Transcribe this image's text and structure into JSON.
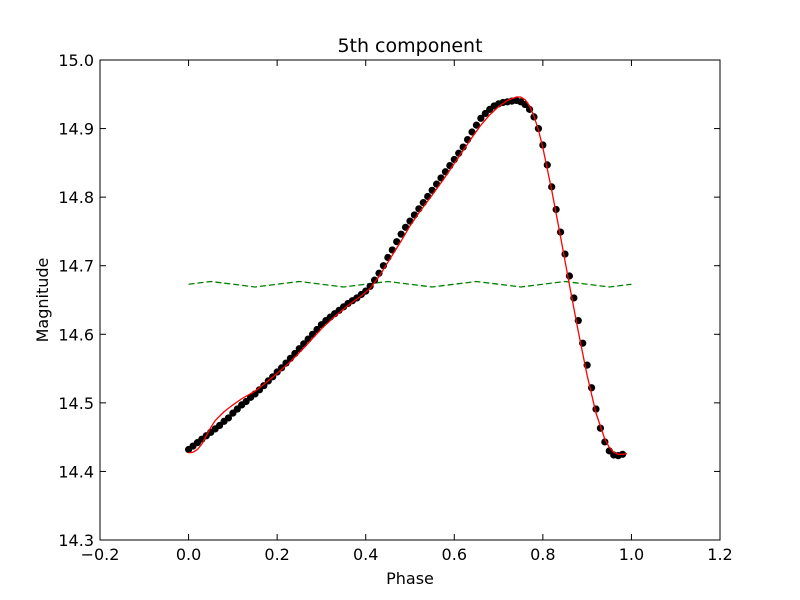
{
  "chart_data": {
    "type": "line",
    "title": "5th component",
    "xlabel": "Phase",
    "ylabel": "Magnitude",
    "xlim": [
      -0.2,
      1.2
    ],
    "ylim": [
      14.3,
      15.0
    ],
    "x_ticks": [
      -0.2,
      0.0,
      0.2,
      0.4,
      0.6,
      0.8,
      1.0,
      1.2
    ],
    "x_tick_labels": [
      "−0.2",
      "0.0",
      "0.2",
      "0.4",
      "0.6",
      "0.8",
      "1.0",
      "1.2"
    ],
    "y_ticks": [
      14.3,
      14.4,
      14.5,
      14.6,
      14.7,
      14.8,
      14.9,
      15.0
    ],
    "y_tick_labels": [
      "14.3",
      "14.4",
      "14.5",
      "14.6",
      "14.7",
      "14.8",
      "14.9",
      "15.0"
    ],
    "grid": false,
    "series": [
      {
        "kind": "scatter",
        "color": "#000000",
        "points": [
          [
            0.0,
            14.432
          ],
          [
            0.01,
            14.437
          ],
          [
            0.02,
            14.442
          ],
          [
            0.03,
            14.447
          ],
          [
            0.04,
            14.452
          ],
          [
            0.05,
            14.457
          ],
          [
            0.06,
            14.462
          ],
          [
            0.07,
            14.467
          ],
          [
            0.08,
            14.473
          ],
          [
            0.09,
            14.478
          ],
          [
            0.1,
            14.485
          ],
          [
            0.11,
            14.491
          ],
          [
            0.12,
            14.497
          ],
          [
            0.13,
            14.502
          ],
          [
            0.14,
            14.508
          ],
          [
            0.15,
            14.513
          ],
          [
            0.16,
            14.519
          ],
          [
            0.17,
            14.525
          ],
          [
            0.18,
            14.532
          ],
          [
            0.19,
            14.538
          ],
          [
            0.2,
            14.545
          ],
          [
            0.21,
            14.551
          ],
          [
            0.22,
            14.558
          ],
          [
            0.23,
            14.565
          ],
          [
            0.24,
            14.572
          ],
          [
            0.25,
            14.579
          ],
          [
            0.26,
            14.586
          ],
          [
            0.27,
            14.593
          ],
          [
            0.28,
            14.6
          ],
          [
            0.29,
            14.607
          ],
          [
            0.3,
            14.614
          ],
          [
            0.31,
            14.62
          ],
          [
            0.32,
            14.625
          ],
          [
            0.33,
            14.63
          ],
          [
            0.34,
            14.635
          ],
          [
            0.35,
            14.64
          ],
          [
            0.36,
            14.645
          ],
          [
            0.37,
            14.649
          ],
          [
            0.38,
            14.653
          ],
          [
            0.39,
            14.658
          ],
          [
            0.4,
            14.663
          ],
          [
            0.41,
            14.67
          ],
          [
            0.42,
            14.679
          ],
          [
            0.43,
            14.689
          ],
          [
            0.44,
            14.7
          ],
          [
            0.45,
            14.712
          ],
          [
            0.46,
            14.723
          ],
          [
            0.47,
            14.735
          ],
          [
            0.48,
            14.746
          ],
          [
            0.49,
            14.756
          ],
          [
            0.5,
            14.765
          ],
          [
            0.51,
            14.774
          ],
          [
            0.52,
            14.783
          ],
          [
            0.53,
            14.792
          ],
          [
            0.54,
            14.801
          ],
          [
            0.55,
            14.81
          ],
          [
            0.56,
            14.819
          ],
          [
            0.57,
            14.828
          ],
          [
            0.58,
            14.837
          ],
          [
            0.59,
            14.846
          ],
          [
            0.6,
            14.855
          ],
          [
            0.61,
            14.864
          ],
          [
            0.62,
            14.873
          ],
          [
            0.63,
            14.884
          ],
          [
            0.64,
            14.895
          ],
          [
            0.65,
            14.905
          ],
          [
            0.66,
            14.915
          ],
          [
            0.67,
            14.922
          ],
          [
            0.68,
            14.928
          ],
          [
            0.69,
            14.933
          ],
          [
            0.7,
            14.936
          ],
          [
            0.71,
            14.938
          ],
          [
            0.72,
            14.939
          ],
          [
            0.73,
            14.94
          ],
          [
            0.74,
            14.941
          ],
          [
            0.75,
            14.939
          ],
          [
            0.76,
            14.935
          ],
          [
            0.77,
            14.928
          ],
          [
            0.78,
            14.917
          ],
          [
            0.79,
            14.9
          ],
          [
            0.8,
            14.876
          ],
          [
            0.81,
            14.847
          ],
          [
            0.82,
            14.815
          ],
          [
            0.83,
            14.782
          ],
          [
            0.84,
            14.749
          ],
          [
            0.85,
            14.717
          ],
          [
            0.86,
            14.685
          ],
          [
            0.87,
            14.653
          ],
          [
            0.88,
            14.62
          ],
          [
            0.89,
            14.587
          ],
          [
            0.9,
            14.555
          ],
          [
            0.91,
            14.522
          ],
          [
            0.92,
            14.491
          ],
          [
            0.93,
            14.463
          ],
          [
            0.94,
            14.443
          ],
          [
            0.95,
            14.43
          ],
          [
            0.96,
            14.424
          ],
          [
            0.97,
            14.423
          ],
          [
            0.98,
            14.425
          ]
        ]
      },
      {
        "kind": "line",
        "color": "#ff0000",
        "points": [
          [
            0.0,
            14.427
          ],
          [
            0.01,
            14.428
          ],
          [
            0.02,
            14.432
          ],
          [
            0.03,
            14.44
          ],
          [
            0.04,
            14.452
          ],
          [
            0.05,
            14.464
          ],
          [
            0.06,
            14.474
          ],
          [
            0.08,
            14.487
          ],
          [
            0.1,
            14.497
          ],
          [
            0.12,
            14.506
          ],
          [
            0.15,
            14.517
          ],
          [
            0.18,
            14.532
          ],
          [
            0.2,
            14.543
          ],
          [
            0.23,
            14.56
          ],
          [
            0.26,
            14.58
          ],
          [
            0.3,
            14.608
          ],
          [
            0.33,
            14.626
          ],
          [
            0.36,
            14.642
          ],
          [
            0.39,
            14.656
          ],
          [
            0.41,
            14.667
          ],
          [
            0.43,
            14.684
          ],
          [
            0.45,
            14.705
          ],
          [
            0.48,
            14.736
          ],
          [
            0.5,
            14.758
          ],
          [
            0.52,
            14.777
          ],
          [
            0.55,
            14.803
          ],
          [
            0.58,
            14.83
          ],
          [
            0.6,
            14.849
          ],
          [
            0.62,
            14.868
          ],
          [
            0.64,
            14.887
          ],
          [
            0.66,
            14.905
          ],
          [
            0.68,
            14.92
          ],
          [
            0.7,
            14.932
          ],
          [
            0.72,
            14.941
          ],
          [
            0.74,
            14.946
          ],
          [
            0.75,
            14.946
          ],
          [
            0.76,
            14.942
          ],
          [
            0.77,
            14.933
          ],
          [
            0.78,
            14.918
          ],
          [
            0.79,
            14.898
          ],
          [
            0.8,
            14.872
          ],
          [
            0.82,
            14.81
          ],
          [
            0.84,
            14.742
          ],
          [
            0.86,
            14.672
          ],
          [
            0.88,
            14.604
          ],
          [
            0.9,
            14.54
          ],
          [
            0.92,
            14.485
          ],
          [
            0.94,
            14.447
          ],
          [
            0.95,
            14.435
          ],
          [
            0.96,
            14.428
          ],
          [
            0.97,
            14.425
          ],
          [
            0.98,
            14.425
          ],
          [
            0.99,
            14.426
          ]
        ]
      },
      {
        "kind": "dashed-line",
        "color": "#008000",
        "points": [
          [
            0.0,
            14.673
          ],
          [
            0.05,
            14.677
          ],
          [
            0.1,
            14.673
          ],
          [
            0.15,
            14.669
          ],
          [
            0.2,
            14.673
          ],
          [
            0.25,
            14.677
          ],
          [
            0.3,
            14.673
          ],
          [
            0.35,
            14.669
          ],
          [
            0.4,
            14.673
          ],
          [
            0.45,
            14.677
          ],
          [
            0.5,
            14.673
          ],
          [
            0.55,
            14.669
          ],
          [
            0.6,
            14.673
          ],
          [
            0.65,
            14.677
          ],
          [
            0.7,
            14.673
          ],
          [
            0.75,
            14.669
          ],
          [
            0.8,
            14.673
          ],
          [
            0.85,
            14.677
          ],
          [
            0.9,
            14.673
          ],
          [
            0.95,
            14.669
          ],
          [
            1.0,
            14.673
          ]
        ]
      }
    ]
  }
}
